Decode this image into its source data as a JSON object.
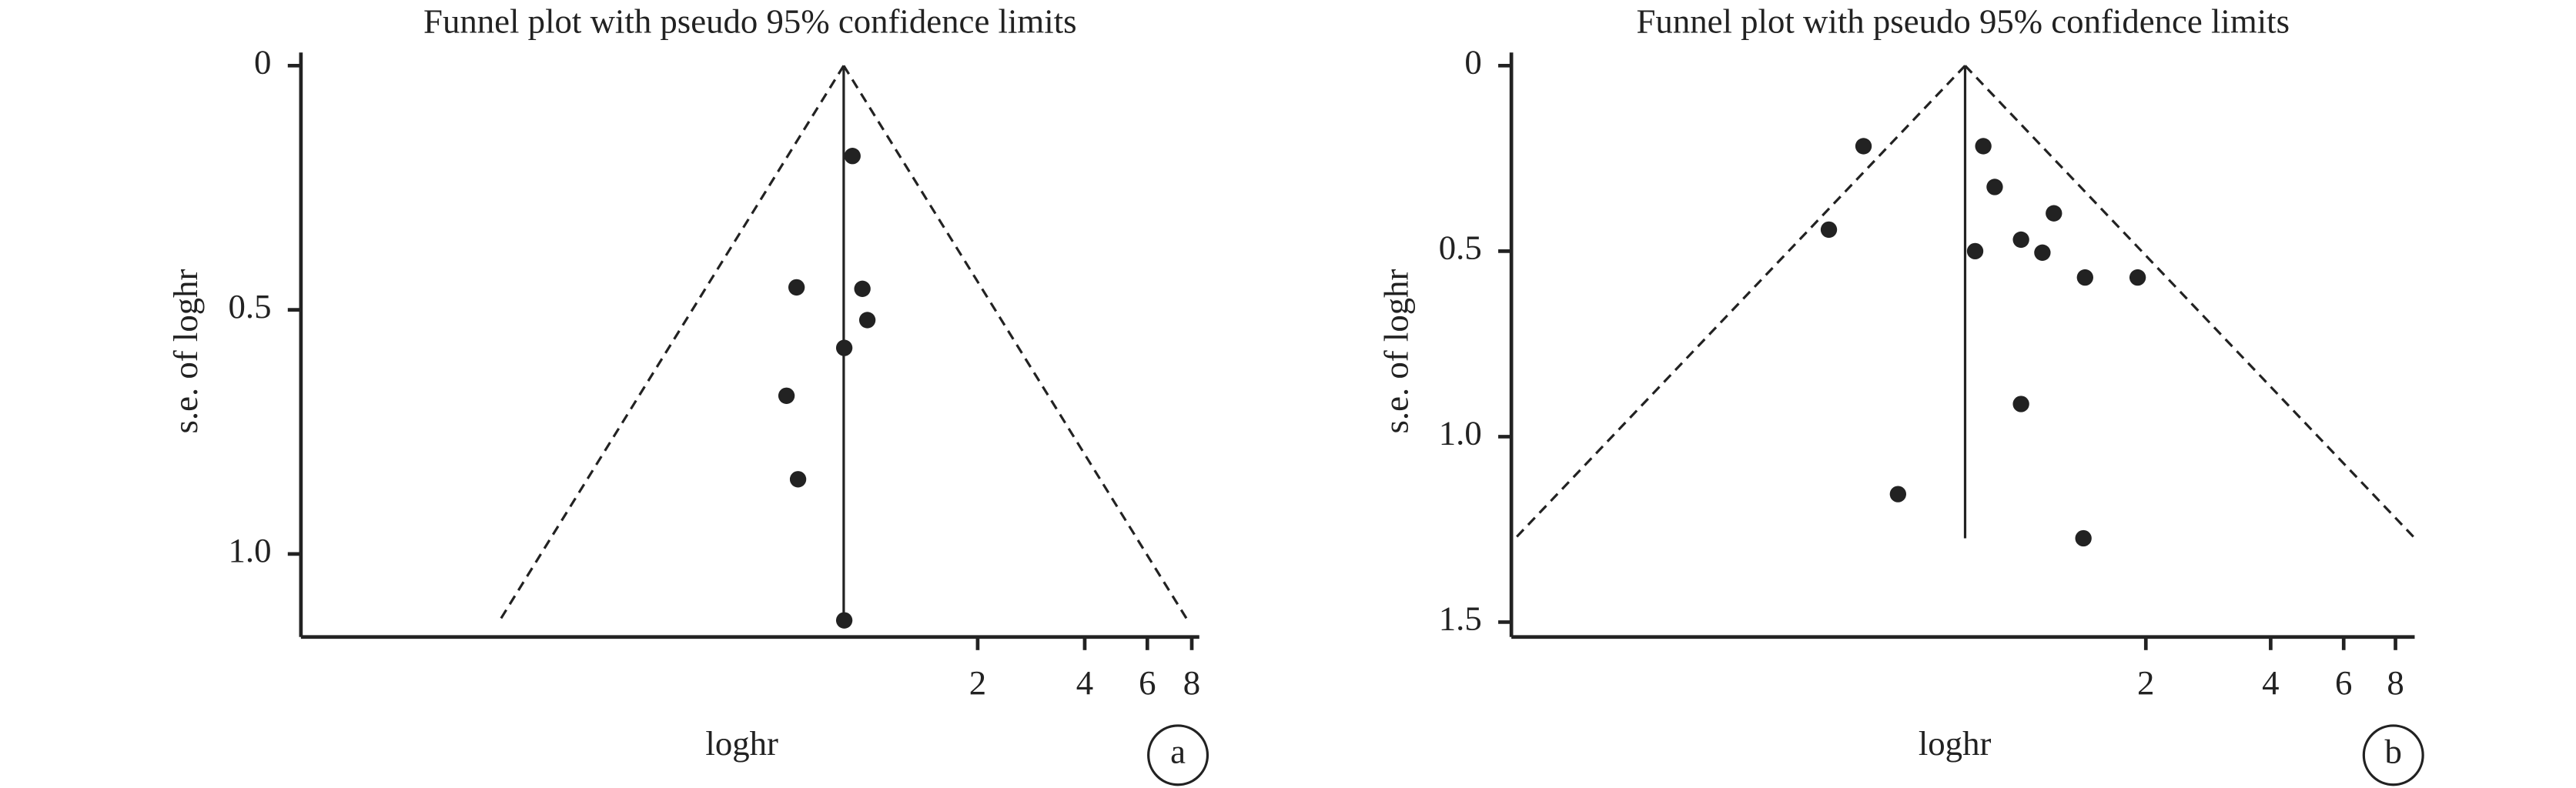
{
  "chart_data": [
    {
      "type": "scatter",
      "title": "Funnel plot with pseudo 95% confidence limits",
      "xlabel": "loghr",
      "ylabel": "s.e. of loghr",
      "panel_label": "a",
      "x": [
        0.889,
        0.619,
        0.948,
        0.979,
        0.843,
        0.58,
        0.625,
        0.843
      ],
      "values": [
        0.185,
        0.454,
        0.457,
        0.521,
        0.578,
        0.676,
        0.847,
        1.136
      ],
      "lines": [
        {
          "style": "solid",
          "x": [
            0.84,
            0.84
          ],
          "values": [
            0,
            1.136
          ]
        },
        {
          "style": "dashed",
          "x": [
            0.84,
            0.0906
          ],
          "values": [
            0,
            1.136
          ]
        },
        {
          "style": "dashed",
          "x": [
            0.84,
            7.79
          ],
          "values": [
            0,
            1.136
          ]
        }
      ],
      "xscale": "log",
      "y_inverted": true,
      "color": "#222",
      "xlim": [
        0.025,
        8.4
      ],
      "ylim": [
        0,
        1.17
      ],
      "xticks": [
        2,
        4,
        6,
        8
      ],
      "yticks": [
        0,
        0.5,
        {
          "value": 1,
          "label": "1.0"
        }
      ]
    },
    {
      "type": "scatter",
      "title": "Funnel plot with pseudo 95% confidence limits",
      "xlabel": "loghr",
      "ylabel": "s.e. of loghr",
      "panel_label": "b",
      "x": [
        0.417,
        0.811,
        0.864,
        1.2,
        0.344,
        1.0,
        0.775,
        1.126,
        1.427,
        1.911,
        1.0,
        0.505,
        1.414
      ],
      "values": [
        0.217,
        0.217,
        0.327,
        0.398,
        0.442,
        0.469,
        0.5,
        0.504,
        0.571,
        0.571,
        0.912,
        1.155,
        1.274
      ],
      "lines": [
        {
          "style": "solid",
          "x": [
            0.733,
            0.733
          ],
          "values": [
            0,
            1.274
          ]
        },
        {
          "style": "dashed",
          "x": [
            0.733,
            0.0603
          ],
          "values": [
            0,
            1.274
          ]
        },
        {
          "style": "dashed",
          "x": [
            0.733,
            8.91
          ],
          "values": [
            0,
            1.274
          ]
        }
      ],
      "xscale": "log",
      "y_inverted": true,
      "color": "#222",
      "xlim": [
        0.059,
        8.9
      ],
      "ylim": [
        0,
        1.54
      ],
      "xticks": [
        2,
        4,
        6,
        8
      ],
      "yticks": [
        0,
        0.5,
        {
          "value": 1,
          "label": "1.0"
        },
        1.5
      ]
    }
  ]
}
